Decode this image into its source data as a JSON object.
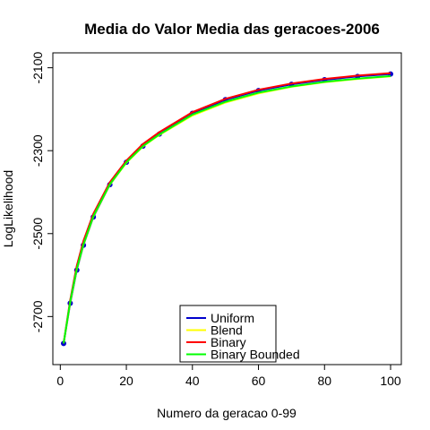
{
  "chart_data": {
    "type": "line",
    "title": "Media do Valor Media das geracoes-2006",
    "xlabel": "Numero da geracao 0-99",
    "ylabel": "LogLikelihood",
    "xlim": [
      1,
      100
    ],
    "ylim": [
      -2790,
      -2090
    ],
    "x_ticks": [
      0,
      20,
      40,
      60,
      80,
      100
    ],
    "y_ticks": [
      -2100,
      -2300,
      -2500,
      -2700
    ],
    "grid": false,
    "legend_position": "bottom-center",
    "series": [
      {
        "name": "Uniform",
        "color": "#0000cc",
        "markers": true,
        "x": [
          1,
          3,
          5,
          7,
          10,
          15,
          20,
          25,
          30,
          40,
          50,
          60,
          70,
          80,
          90,
          100
        ],
        "y": [
          -2765,
          -2668,
          -2588,
          -2528,
          -2460,
          -2382,
          -2328,
          -2289,
          -2260,
          -2210,
          -2177,
          -2155,
          -2140,
          -2129,
          -2121,
          -2115
        ]
      },
      {
        "name": "Blend",
        "color": "#ffff00",
        "markers": false,
        "x": [
          1,
          3,
          5,
          7,
          10,
          15,
          20,
          25,
          30,
          40,
          50,
          60,
          70,
          80,
          90,
          100
        ],
        "y": [
          -2765,
          -2666,
          -2586,
          -2527,
          -2459,
          -2382,
          -2329,
          -2290,
          -2262,
          -2215,
          -2184,
          -2162,
          -2146,
          -2135,
          -2127,
          -2121
        ]
      },
      {
        "name": "Binary",
        "color": "#ff0000",
        "markers": false,
        "x": [
          1,
          3,
          5,
          7,
          10,
          15,
          20,
          25,
          30,
          40,
          50,
          60,
          70,
          80,
          90,
          100
        ],
        "y": [
          -2765,
          -2660,
          -2578,
          -2518,
          -2452,
          -2376,
          -2324,
          -2284,
          -2255,
          -2207,
          -2175,
          -2153,
          -2138,
          -2127,
          -2119,
          -2113
        ]
      },
      {
        "name": "Binary Bounded",
        "color": "#00ff00",
        "markers": false,
        "x": [
          1,
          3,
          5,
          7,
          10,
          15,
          20,
          25,
          30,
          40,
          50,
          60,
          70,
          80,
          90,
          100
        ],
        "y": [
          -2765,
          -2664,
          -2585,
          -2526,
          -2458,
          -2381,
          -2328,
          -2289,
          -2261,
          -2213,
          -2182,
          -2160,
          -2145,
          -2134,
          -2126,
          -2120
        ]
      }
    ]
  }
}
